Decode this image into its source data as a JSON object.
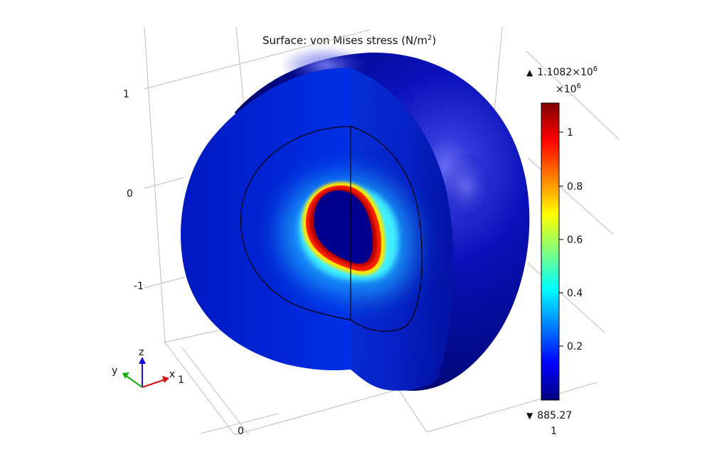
{
  "plot": {
    "title_main": "Surface: von Mises stress (N/m",
    "title_sup": "2",
    "title_close": ")"
  },
  "axis_ticks": {
    "z": [
      "1",
      "0",
      "-1"
    ],
    "x_left": "0",
    "x_right": "1"
  },
  "triad": {
    "x": "x",
    "y": "y",
    "z": "z",
    "x_tick": "1"
  },
  "colorbar": {
    "max_value": "1.1082×10",
    "max_sup": "6",
    "multiplier": "×10",
    "multiplier_sup": "6",
    "min_value": "885.27",
    "ticks": [
      "1",
      "0.8",
      "0.6",
      "0.4",
      "0.2"
    ],
    "colormap": [
      "#00007f",
      "#0000ff",
      "#00ffff",
      "#ffff00",
      "#ff0000",
      "#7f0000"
    ]
  },
  "icons": {
    "max_marker": "triangle-up-icon",
    "min_marker": "triangle-down-icon"
  }
}
